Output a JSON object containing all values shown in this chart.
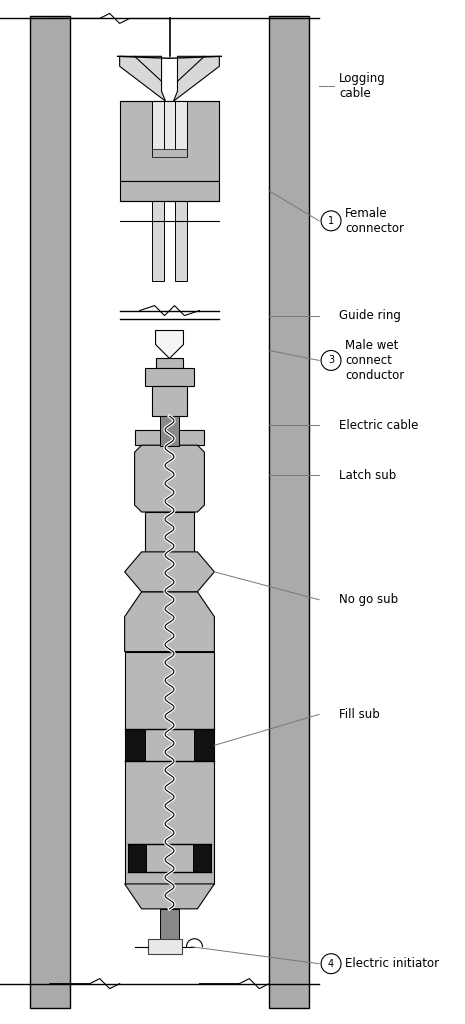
{
  "bg_color": "#ffffff",
  "lc": "#000000",
  "gray_casing": "#aaaaaa",
  "gray_fill": "#b8b8b8",
  "gray_dark": "#888888",
  "gray_light": "#d8d8d8",
  "labels": {
    "logging_cable": "Logging\ncable",
    "female_connector": "Female\nconnector",
    "guide_ring": "Guide ring",
    "male_wet": "Male wet\nconnect\nconductor",
    "electric_cable": "Electric cable",
    "latch_sub": "Latch sub",
    "no_go_sub": "No go sub",
    "fill_sub": "Fill sub",
    "electric_initiator": "Electric initiator"
  }
}
